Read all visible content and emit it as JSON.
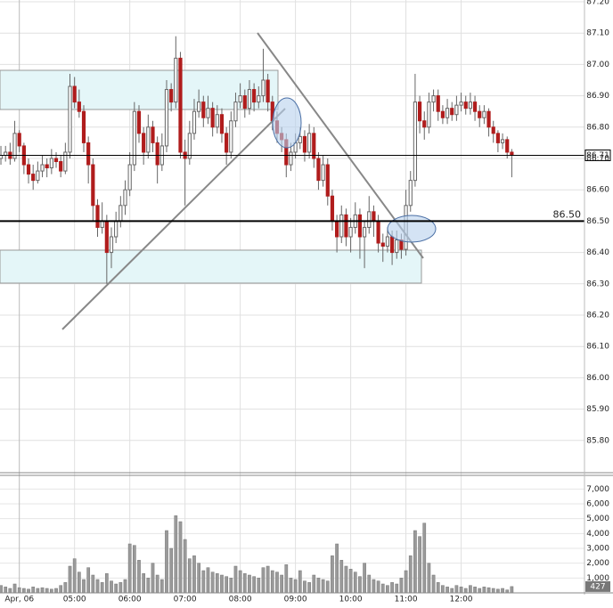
{
  "chart_data": {
    "type": "candlestick",
    "x": [
      220,
      225,
      230,
      235,
      240,
      245,
      250,
      255,
      260,
      265,
      270,
      275,
      280,
      285,
      290,
      295,
      300,
      305,
      310,
      315,
      320,
      325,
      330,
      335,
      340,
      345,
      350,
      355,
      360,
      365,
      370,
      375,
      380,
      385,
      390,
      395,
      400,
      405,
      410,
      415,
      420,
      425,
      430,
      435,
      440,
      445,
      450,
      455,
      460,
      465,
      470,
      475,
      480,
      485,
      490,
      495,
      500,
      505,
      510,
      515,
      520,
      525,
      530,
      535,
      540,
      545,
      550,
      555,
      560,
      565,
      570,
      575,
      580,
      585,
      590,
      595,
      600,
      605,
      610,
      615,
      620,
      625,
      630,
      635,
      640,
      645,
      650,
      655,
      660,
      665,
      670,
      675,
      680,
      685,
      690,
      695,
      700,
      705,
      710,
      715,
      720,
      725,
      730,
      735,
      740,
      745,
      750,
      755,
      760,
      765,
      770,
      775
    ],
    "ohlc": [
      [
        86.7,
        86.74,
        86.68,
        86.71
      ],
      [
        86.71,
        86.74,
        86.69,
        86.72
      ],
      [
        86.72,
        86.75,
        86.68,
        86.7
      ],
      [
        86.7,
        86.82,
        86.69,
        86.78
      ],
      [
        86.78,
        86.79,
        86.72,
        86.74
      ],
      [
        86.74,
        86.75,
        86.65,
        86.68
      ],
      [
        86.68,
        86.7,
        86.62,
        86.65
      ],
      [
        86.65,
        86.68,
        86.6,
        86.63
      ],
      [
        86.63,
        86.69,
        86.62,
        86.66
      ],
      [
        86.66,
        86.71,
        86.64,
        86.68
      ],
      [
        86.68,
        86.7,
        86.64,
        86.67
      ],
      [
        86.67,
        86.73,
        86.65,
        86.7
      ],
      [
        86.7,
        86.72,
        86.67,
        86.69
      ],
      [
        86.69,
        86.71,
        86.64,
        86.66
      ],
      [
        86.66,
        86.75,
        86.65,
        86.72
      ],
      [
        86.72,
        86.97,
        86.7,
        86.93
      ],
      [
        86.93,
        86.96,
        86.86,
        86.88
      ],
      [
        86.88,
        86.92,
        86.83,
        86.85
      ],
      [
        86.85,
        86.87,
        86.72,
        86.75
      ],
      [
        86.75,
        86.77,
        86.62,
        86.68
      ],
      [
        86.68,
        86.7,
        86.5,
        86.55
      ],
      [
        86.55,
        86.57,
        86.45,
        86.48
      ],
      [
        86.48,
        86.56,
        86.46,
        86.5
      ],
      [
        86.5,
        86.52,
        86.3,
        86.4
      ],
      [
        86.4,
        86.48,
        86.35,
        86.45
      ],
      [
        86.45,
        86.53,
        86.43,
        86.5
      ],
      [
        86.5,
        86.58,
        86.48,
        86.55
      ],
      [
        86.55,
        86.63,
        86.52,
        86.6
      ],
      [
        86.6,
        86.72,
        86.58,
        86.68
      ],
      [
        86.68,
        86.88,
        86.66,
        86.85
      ],
      [
        86.85,
        86.87,
        86.75,
        86.78
      ],
      [
        86.78,
        86.8,
        86.68,
        86.72
      ],
      [
        86.72,
        86.84,
        86.7,
        86.8
      ],
      [
        86.8,
        86.82,
        86.72,
        86.75
      ],
      [
        86.75,
        86.77,
        86.62,
        86.68
      ],
      [
        86.68,
        86.78,
        86.66,
        86.74
      ],
      [
        86.74,
        86.95,
        86.72,
        86.92
      ],
      [
        86.92,
        86.94,
        86.85,
        86.88
      ],
      [
        86.88,
        87.09,
        86.86,
        87.02
      ],
      [
        87.02,
        87.04,
        86.7,
        86.72
      ],
      [
        86.72,
        86.76,
        86.55,
        86.7
      ],
      [
        86.7,
        86.82,
        86.68,
        86.78
      ],
      [
        86.78,
        86.89,
        86.76,
        86.85
      ],
      [
        86.85,
        86.92,
        86.83,
        86.88
      ],
      [
        86.88,
        86.9,
        86.8,
        86.83
      ],
      [
        86.83,
        86.9,
        86.81,
        86.86
      ],
      [
        86.86,
        86.88,
        86.77,
        86.8
      ],
      [
        86.8,
        86.87,
        86.78,
        86.84
      ],
      [
        86.84,
        86.86,
        86.75,
        86.78
      ],
      [
        86.78,
        86.8,
        86.68,
        86.72
      ],
      [
        86.72,
        86.85,
        86.7,
        86.82
      ],
      [
        86.82,
        86.91,
        86.8,
        86.88
      ],
      [
        86.88,
        86.94,
        86.86,
        86.9
      ],
      [
        86.9,
        86.92,
        86.83,
        86.86
      ],
      [
        86.86,
        86.95,
        86.84,
        86.92
      ],
      [
        86.92,
        86.94,
        86.85,
        86.88
      ],
      [
        86.88,
        86.93,
        86.86,
        86.9
      ],
      [
        86.9,
        87.05,
        86.88,
        86.95
      ],
      [
        86.95,
        86.97,
        86.85,
        86.88
      ],
      [
        86.88,
        86.9,
        86.79,
        86.82
      ],
      [
        86.82,
        86.85,
        86.75,
        86.78
      ],
      [
        86.78,
        86.8,
        86.72,
        86.76
      ],
      [
        86.76,
        86.78,
        86.64,
        86.68
      ],
      [
        86.68,
        86.75,
        86.66,
        86.72
      ],
      [
        86.72,
        86.78,
        86.7,
        86.75
      ],
      [
        86.75,
        86.8,
        86.73,
        86.77
      ],
      [
        86.77,
        86.79,
        86.69,
        86.72
      ],
      [
        86.72,
        86.81,
        86.7,
        86.78
      ],
      [
        86.78,
        86.8,
        86.67,
        86.7
      ],
      [
        86.7,
        86.72,
        86.6,
        86.63
      ],
      [
        86.63,
        86.71,
        86.61,
        86.68
      ],
      [
        86.68,
        86.7,
        86.55,
        86.58
      ],
      [
        86.58,
        86.6,
        86.47,
        86.5
      ],
      [
        86.5,
        86.52,
        86.4,
        86.45
      ],
      [
        86.45,
        86.55,
        86.43,
        86.52
      ],
      [
        86.52,
        86.54,
        86.42,
        86.45
      ],
      [
        86.45,
        86.51,
        86.4,
        86.48
      ],
      [
        86.48,
        86.56,
        86.46,
        86.52
      ],
      [
        86.52,
        86.54,
        86.38,
        86.45
      ],
      [
        86.45,
        86.5,
        86.35,
        86.48
      ],
      [
        86.48,
        86.58,
        86.46,
        86.53
      ],
      [
        86.53,
        86.55,
        86.45,
        86.5
      ],
      [
        86.5,
        86.52,
        86.4,
        86.43
      ],
      [
        86.43,
        86.46,
        86.37,
        86.42
      ],
      [
        86.42,
        86.48,
        86.4,
        86.45
      ],
      [
        86.45,
        86.47,
        86.36,
        86.4
      ],
      [
        86.4,
        86.47,
        86.38,
        86.44
      ],
      [
        86.44,
        86.46,
        86.38,
        86.41
      ],
      [
        86.41,
        86.6,
        86.39,
        86.55
      ],
      [
        86.55,
        86.66,
        86.53,
        86.63
      ],
      [
        86.63,
        86.97,
        86.61,
        86.88
      ],
      [
        86.88,
        86.9,
        86.78,
        86.82
      ],
      [
        86.82,
        86.85,
        86.76,
        86.8
      ],
      [
        86.8,
        86.91,
        86.78,
        86.88
      ],
      [
        86.88,
        86.92,
        86.85,
        86.9
      ],
      [
        86.9,
        86.92,
        86.82,
        86.85
      ],
      [
        86.85,
        86.87,
        86.81,
        86.83
      ],
      [
        86.83,
        86.89,
        86.81,
        86.86
      ],
      [
        86.86,
        86.88,
        86.82,
        86.84
      ],
      [
        86.84,
        86.9,
        86.82,
        86.87
      ],
      [
        86.87,
        86.91,
        86.85,
        86.88
      ],
      [
        86.88,
        86.9,
        86.84,
        86.86
      ],
      [
        86.86,
        86.91,
        86.84,
        86.88
      ],
      [
        86.88,
        86.9,
        86.82,
        86.85
      ],
      [
        86.85,
        86.87,
        86.8,
        86.83
      ],
      [
        86.83,
        86.87,
        86.81,
        86.85
      ],
      [
        86.85,
        86.86,
        86.77,
        86.8
      ],
      [
        86.8,
        86.82,
        86.75,
        86.78
      ],
      [
        86.78,
        86.79,
        86.72,
        86.75
      ],
      [
        86.75,
        86.78,
        86.73,
        86.76
      ],
      [
        86.76,
        86.77,
        86.7,
        86.72
      ],
      [
        86.72,
        86.73,
        86.64,
        86.71
      ]
    ],
    "volume": [
      500,
      400,
      300,
      600,
      350,
      300,
      250,
      400,
      300,
      350,
      300,
      250,
      300,
      500,
      700,
      1800,
      2300,
      1400,
      900,
      1700,
      1200,
      900,
      700,
      1300,
      800,
      600,
      700,
      900,
      3300,
      3200,
      2200,
      1300,
      1000,
      2000,
      1200,
      900,
      4200,
      3000,
      5200,
      4800,
      3600,
      2300,
      2500,
      2000,
      1500,
      1700,
      1400,
      1300,
      1200,
      1100,
      1000,
      1800,
      1500,
      1300,
      1200,
      1100,
      1000,
      1700,
      1800,
      1500,
      1400,
      1200,
      1900,
      1000,
      900,
      1500,
      800,
      700,
      1200,
      1000,
      900,
      800,
      2500,
      3300,
      2200,
      1800,
      1600,
      1400,
      1100,
      2000,
      1200,
      900,
      800,
      600,
      500,
      700,
      600,
      1000,
      1500,
      2500,
      4200,
      3800,
      4700,
      2000,
      1200,
      700,
      500,
      400,
      300,
      500,
      400,
      300,
      500,
      400,
      300,
      400,
      350,
      300,
      250,
      300,
      200,
      427
    ],
    "up_color": "#ffffff",
    "down_color": "#b01c1c",
    "wick_color": "#666666",
    "volume_color": "#9a9a9a",
    "xlim": [
      219,
      854
    ],
    "xticks": [
      {
        "value": 240,
        "label": "Apr, 06"
      },
      {
        "value": 300,
        "label": "05:00"
      },
      {
        "value": 360,
        "label": "06:00"
      },
      {
        "value": 420,
        "label": "07:00"
      },
      {
        "value": 480,
        "label": "08:00"
      },
      {
        "value": 540,
        "label": "09:00"
      },
      {
        "value": 600,
        "label": "10:00"
      },
      {
        "value": 660,
        "label": "11:00"
      },
      {
        "value": 720,
        "label": "12:00"
      }
    ],
    "ylim": [
      85.7,
      87.2
    ],
    "yticks": [
      {
        "value": 85.8,
        "label": "85.80"
      },
      {
        "value": 85.9,
        "label": "85.90"
      },
      {
        "value": 86.0,
        "label": "86.00"
      },
      {
        "value": 86.1,
        "label": "86.10"
      },
      {
        "value": 86.2,
        "label": "86.20"
      },
      {
        "value": 86.3,
        "label": "86.30"
      },
      {
        "value": 86.4,
        "label": "86.40"
      },
      {
        "value": 86.5,
        "label": "86.50"
      },
      {
        "value": 86.6,
        "label": "86.60"
      },
      {
        "value": 86.7,
        "label": "86.70"
      },
      {
        "value": 86.8,
        "label": "86.80"
      },
      {
        "value": 86.9,
        "label": "86.90"
      },
      {
        "value": 87.0,
        "label": "87.00"
      },
      {
        "value": 87.1,
        "label": "87.10"
      },
      {
        "value": 87.2,
        "label": "87.20"
      }
    ],
    "volume_ylim": [
      0,
      7800
    ],
    "volume_yticks": [
      {
        "value": 1000,
        "label": "1,000"
      },
      {
        "value": 2000,
        "label": "2,000"
      },
      {
        "value": 3000,
        "label": "3,000"
      },
      {
        "value": 4000,
        "label": "4,000"
      },
      {
        "value": 5000,
        "label": "5,000"
      },
      {
        "value": 6000,
        "label": "6,000"
      },
      {
        "value": 7000,
        "label": "7,000"
      }
    ],
    "level": {
      "value": 86.5,
      "label": "86.50"
    },
    "last_price": 86.71,
    "grid": true
  }
}
